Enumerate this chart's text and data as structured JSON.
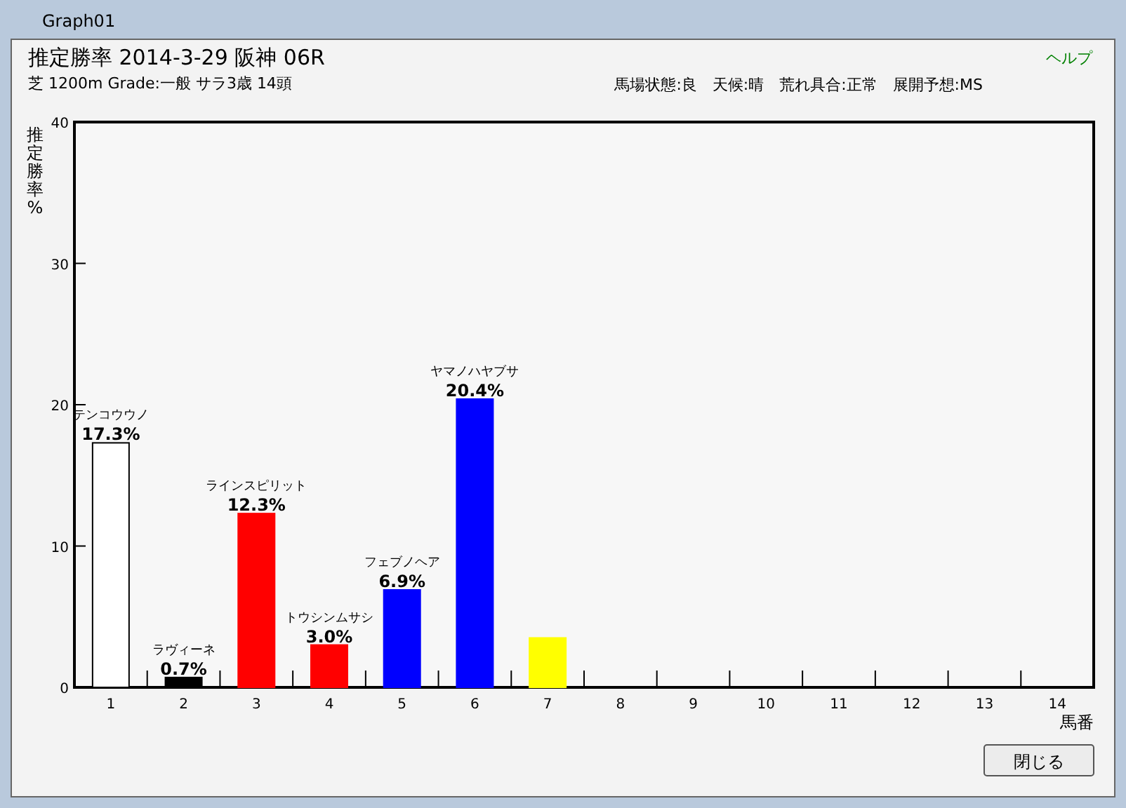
{
  "chart_data": {
    "type": "bar",
    "title": "推定勝率  2014-3-29  阪神  06R",
    "subtitle": "芝 1200m  Grade:一般  サラ3歳  14頭",
    "ylabel": "推定勝率%",
    "xlabel": "馬番",
    "categories": [
      "1",
      "2",
      "3",
      "4",
      "5",
      "6",
      "7",
      "8",
      "9",
      "10",
      "11",
      "12",
      "13",
      "14"
    ],
    "values": [
      17.3,
      0.7,
      12.3,
      3.0,
      6.9,
      20.4,
      3.5,
      0,
      0,
      0,
      0,
      0,
      0,
      0
    ],
    "colors": [
      "#ffffff",
      "#000000",
      "#ff0000",
      "#ff0000",
      "#0000ff",
      "#0000ff",
      "#ffff00",
      "#ffffff",
      "#ffffff",
      "#ffffff",
      "#ffffff",
      "#ffffff",
      "#ffffff",
      "#ffffff"
    ],
    "value_labels": [
      "17.3%",
      "0.7%",
      "12.3%",
      "3.0%",
      "6.9%",
      "20.4%",
      null,
      null,
      null,
      null,
      null,
      null,
      null,
      null
    ],
    "ylim": [
      0,
      40
    ],
    "yticks": [
      0,
      10,
      20,
      30,
      40
    ],
    "grid": false,
    "annotations": [
      {
        "text": "テンコウウノ",
        "x": "1",
        "y": 17.3
      },
      {
        "text": "ラヴィーネ",
        "x": "2",
        "y": 0.7
      },
      {
        "text": "ラインスピリット",
        "x": "3",
        "y": 12.3
      },
      {
        "text": "トウシンムサシ",
        "x": "4",
        "y": 3.0
      },
      {
        "text": "フェブノヘア",
        "x": "5",
        "y": 6.9
      },
      {
        "text": "ヤマノハヤブサ",
        "x": "6",
        "y": 20.4
      },
      "馬場状態:良　天候:晴　荒れ具合:正常　展開予想:MS",
      "Graph01",
      "ヘルプ",
      "閉じる"
    ]
  }
}
